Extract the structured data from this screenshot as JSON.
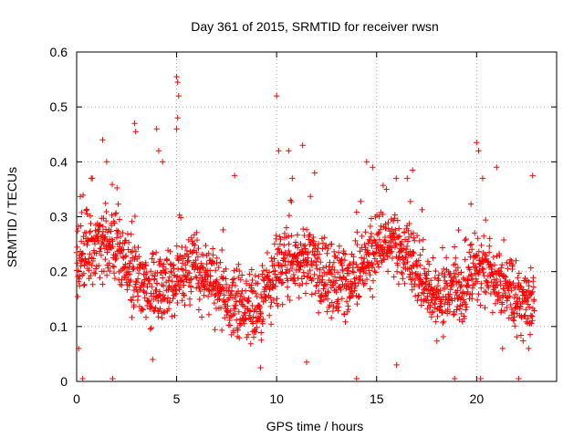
{
  "chart_data": {
    "type": "scatter",
    "title": "Day 361 of 2015, SRMTID for receiver rwsn",
    "xlabel": "GPS time / hours",
    "ylabel": "SRMTID / TECUs",
    "xlim": [
      0,
      24
    ],
    "ylim": [
      0,
      0.6
    ],
    "xticks": [
      0,
      5,
      10,
      15,
      20
    ],
    "xtick_labels": [
      "0",
      "5",
      "10",
      "15",
      "20"
    ],
    "yticks": [
      0,
      0.1,
      0.2,
      0.3,
      0.4,
      0.5,
      0.6
    ],
    "ytick_labels": [
      "0",
      "0.1",
      "0.2",
      "0.3",
      "0.4",
      "0.5",
      "0.6"
    ],
    "grid": true,
    "marker": "+",
    "color": "#ff0000",
    "series": [
      {
        "name": "SRMTID",
        "x_start": 0.0,
        "x_end": 22.9,
        "bulk_range": [
          0.05,
          0.35
        ],
        "notable_points": [
          {
            "x": 0.1,
            "y": 0.06
          },
          {
            "x": 0.2,
            "y": 0.21
          },
          {
            "x": 0.3,
            "y": 0.005
          },
          {
            "x": 1.3,
            "y": 0.44
          },
          {
            "x": 1.5,
            "y": 0.4
          },
          {
            "x": 1.8,
            "y": 0.005
          },
          {
            "x": 2.9,
            "y": 0.47
          },
          {
            "x": 2.95,
            "y": 0.455
          },
          {
            "x": 4.0,
            "y": 0.46
          },
          {
            "x": 4.1,
            "y": 0.42
          },
          {
            "x": 4.3,
            "y": 0.4
          },
          {
            "x": 3.8,
            "y": 0.04
          },
          {
            "x": 5.0,
            "y": 0.555
          },
          {
            "x": 5.05,
            "y": 0.545
          },
          {
            "x": 5.1,
            "y": 0.52
          },
          {
            "x": 5.05,
            "y": 0.48
          },
          {
            "x": 5.0,
            "y": 0.46
          },
          {
            "x": 7.9,
            "y": 0.375
          },
          {
            "x": 9.2,
            "y": 0.025
          },
          {
            "x": 10.0,
            "y": 0.52
          },
          {
            "x": 10.1,
            "y": 0.42
          },
          {
            "x": 10.6,
            "y": 0.42
          },
          {
            "x": 11.3,
            "y": 0.43
          },
          {
            "x": 11.5,
            "y": 0.035
          },
          {
            "x": 11.9,
            "y": 0.38
          },
          {
            "x": 14.0,
            "y": 0.005
          },
          {
            "x": 14.5,
            "y": 0.4
          },
          {
            "x": 14.8,
            "y": 0.39
          },
          {
            "x": 16.0,
            "y": 0.03
          },
          {
            "x": 16.8,
            "y": 0.385
          },
          {
            "x": 18.9,
            "y": 0.005
          },
          {
            "x": 20.0,
            "y": 0.435
          },
          {
            "x": 20.1,
            "y": 0.42
          },
          {
            "x": 20.2,
            "y": 0.005
          },
          {
            "x": 20.3,
            "y": 0.37
          },
          {
            "x": 21.0,
            "y": 0.39
          },
          {
            "x": 21.3,
            "y": 0.06
          },
          {
            "x": 22.1,
            "y": 0.005
          },
          {
            "x": 22.6,
            "y": 0.06
          },
          {
            "x": 22.8,
            "y": 0.375
          }
        ]
      }
    ]
  }
}
